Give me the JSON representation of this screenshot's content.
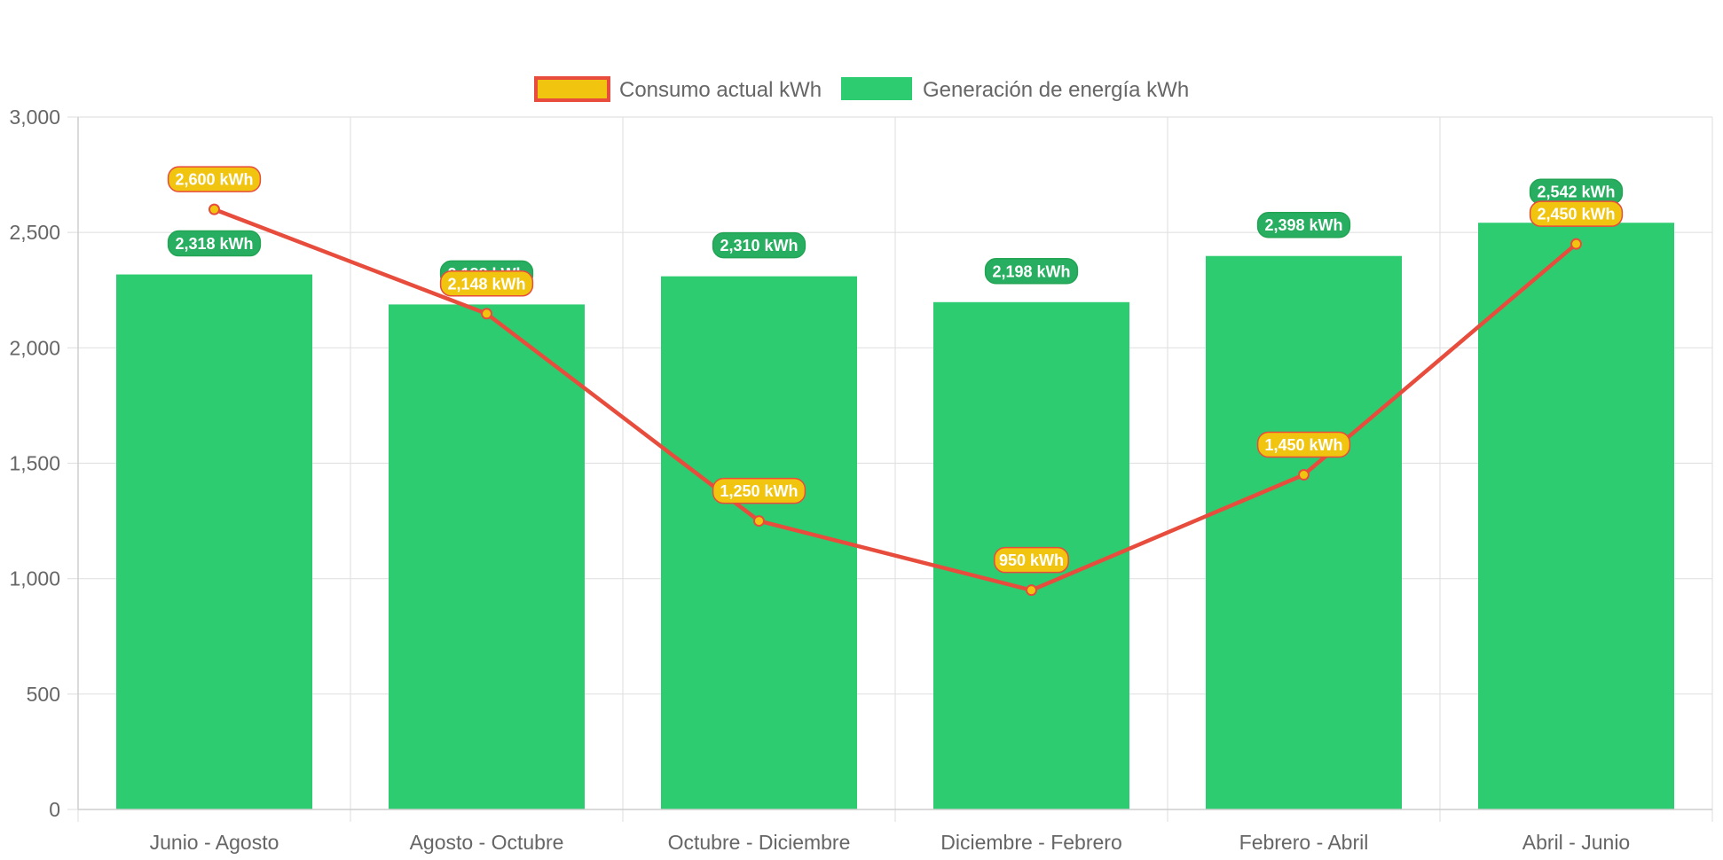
{
  "chart_data": {
    "type": "bar",
    "categories": [
      "Junio - Agosto",
      "Agosto - Octubre",
      "Octubre - Diciembre",
      "Diciembre - Febrero",
      "Febrero - Abril",
      "Abril - Junio"
    ],
    "series": [
      {
        "name": "Consumo actual kWh",
        "type": "line",
        "values": [
          2600,
          2148,
          1250,
          950,
          1450,
          2450
        ],
        "labels": [
          "2,600 kWh",
          "2,148 kWh",
          "1,250 kWh",
          "950 kWh",
          "1,450 kWh",
          "2,450 kWh"
        ],
        "color": "#e74c3c",
        "fill": "#f1c40f"
      },
      {
        "name": "Generación de energía kWh",
        "type": "bar",
        "values": [
          2318,
          2188,
          2310,
          2198,
          2398,
          2542
        ],
        "labels": [
          "2,318 kWh",
          "2,188 kWh",
          "2,310 kWh",
          "2,198 kWh",
          "2,398 kWh",
          "2,542 kWh"
        ],
        "color": "#2ecc71",
        "label_bg": "#27ae60"
      }
    ],
    "ylim": [
      0,
      3000
    ],
    "yticks": [
      0,
      500,
      1000,
      1500,
      2000,
      2500,
      3000
    ],
    "ytick_labels": [
      "0",
      "500",
      "1,000",
      "1,500",
      "2,000",
      "2,500",
      "3,000"
    ],
    "grid": true,
    "legend_position": "top-center",
    "title": "",
    "xlabel": "",
    "ylabel": ""
  }
}
